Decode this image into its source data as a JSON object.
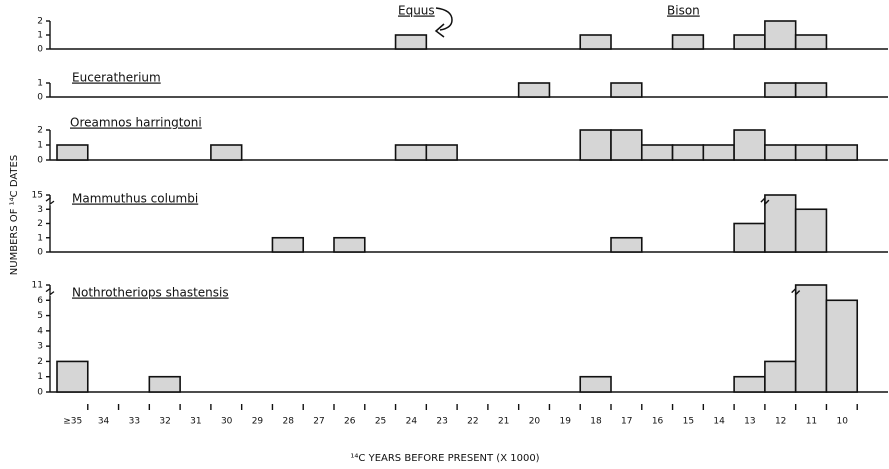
{
  "chart_data": [
    {
      "type": "histogram",
      "bins": [
        36,
        35,
        34,
        33,
        32,
        31,
        30,
        29,
        28,
        27,
        26,
        25,
        24,
        23,
        22,
        21,
        20,
        19,
        18,
        17,
        16,
        15,
        14,
        13,
        12,
        11,
        10
      ],
      "xlim": [
        36,
        9
      ],
      "ylim": [
        0,
        2
      ],
      "yticks": [
        0,
        1,
        2
      ],
      "color": "#d6d6d6",
      "series": [
        {
          "name": "Equus",
          "values": [
            0,
            0,
            0,
            0,
            0,
            0,
            0,
            0,
            0,
            0,
            0,
            1,
            0,
            0,
            0,
            0,
            0,
            0,
            0,
            0,
            0,
            0,
            0,
            0,
            0,
            0
          ]
        },
        {
          "name": "Bison",
          "values": [
            0,
            0,
            0,
            0,
            0,
            0,
            0,
            0,
            0,
            0,
            0,
            0,
            0,
            0,
            0,
            0,
            0,
            1,
            0,
            0,
            1,
            0,
            1,
            2,
            1,
            0
          ]
        }
      ]
    },
    {
      "type": "histogram",
      "bins": [
        36,
        35,
        34,
        33,
        32,
        31,
        30,
        29,
        28,
        27,
        26,
        25,
        24,
        23,
        22,
        21,
        20,
        19,
        18,
        17,
        16,
        15,
        14,
        13,
        12,
        11,
        10
      ],
      "xlim": [
        36,
        9
      ],
      "ylim": [
        0,
        1
      ],
      "yticks": [
        0,
        1
      ],
      "color": "#d6d6d6",
      "series": [
        {
          "name": "Euceratherium",
          "values": [
            0,
            0,
            0,
            0,
            0,
            0,
            0,
            0,
            0,
            0,
            0,
            0,
            0,
            0,
            0,
            1,
            0,
            0,
            1,
            0,
            0,
            0,
            0,
            1,
            1,
            0
          ]
        }
      ]
    },
    {
      "type": "histogram",
      "bins": [
        36,
        35,
        34,
        33,
        32,
        31,
        30,
        29,
        28,
        27,
        26,
        25,
        24,
        23,
        22,
        21,
        20,
        19,
        18,
        17,
        16,
        15,
        14,
        13,
        12,
        11,
        10
      ],
      "xlim": [
        36,
        9
      ],
      "ylim": [
        0,
        2
      ],
      "yticks": [
        0,
        1,
        2
      ],
      "color": "#d6d6d6",
      "ylabel": "NUMBERS OF ¹⁴C DATES",
      "series": [
        {
          "name": "Oreamnos harringtoni",
          "values": [
            1,
            0,
            0,
            0,
            0,
            1,
            0,
            0,
            0,
            0,
            0,
            1,
            1,
            0,
            0,
            0,
            0,
            2,
            2,
            1,
            1,
            1,
            2,
            1,
            1,
            1
          ]
        }
      ]
    },
    {
      "type": "histogram",
      "bins": [
        36,
        35,
        34,
        33,
        32,
        31,
        30,
        29,
        28,
        27,
        26,
        25,
        24,
        23,
        22,
        21,
        20,
        19,
        18,
        17,
        16,
        15,
        14,
        13,
        12,
        11,
        10
      ],
      "xlim": [
        36,
        9
      ],
      "ylim": [
        0,
        15
      ],
      "ybreak": [
        3,
        15
      ],
      "yticks": [
        0,
        1,
        2,
        3,
        15
      ],
      "color": "#d6d6d6",
      "series": [
        {
          "name": "Mammuthus columbi",
          "values": [
            0,
            0,
            0,
            0,
            0,
            0,
            0,
            1,
            0,
            1,
            0,
            0,
            0,
            0,
            0,
            0,
            0,
            0,
            1,
            0,
            0,
            0,
            2,
            15,
            3,
            0
          ]
        }
      ]
    },
    {
      "type": "histogram",
      "bins": [
        36,
        35,
        34,
        33,
        32,
        31,
        30,
        29,
        28,
        27,
        26,
        25,
        24,
        23,
        22,
        21,
        20,
        19,
        18,
        17,
        16,
        15,
        14,
        13,
        12,
        11,
        10
      ],
      "xlim": [
        36,
        9
      ],
      "ylim": [
        0,
        11
      ],
      "ybreak": [
        6,
        11
      ],
      "yticks": [
        0,
        1,
        2,
        3,
        4,
        5,
        6,
        11
      ],
      "color": "#d6d6d6",
      "xticks": [
        {
          "value": 35,
          "label": "≥35"
        },
        34,
        33,
        32,
        31,
        30,
        29,
        28,
        27,
        26,
        25,
        24,
        23,
        22,
        21,
        20,
        19,
        18,
        17,
        16,
        15,
        14,
        13,
        12,
        11,
        10
      ],
      "xlabel": "¹⁴C YEARS BEFORE PRESENT (X 1000)",
      "series": [
        {
          "name": "Nothrotheriops shastensis",
          "values": [
            2,
            0,
            0,
            1,
            0,
            0,
            0,
            0,
            0,
            0,
            0,
            0,
            0,
            0,
            0,
            0,
            0,
            1,
            0,
            0,
            0,
            0,
            1,
            2,
            11,
            6
          ]
        }
      ]
    }
  ]
}
